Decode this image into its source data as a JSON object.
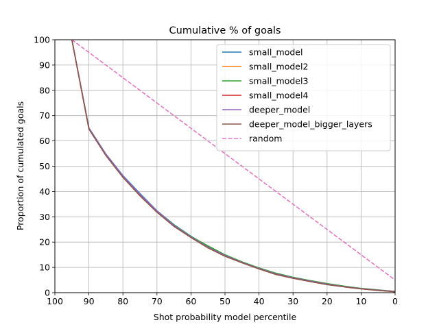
{
  "chart_data": {
    "type": "line",
    "title": "Cumulative % of goals",
    "xlabel": "Shot probability model percentile",
    "ylabel": "Proportion of cumulated goals",
    "xlim": [
      100,
      0
    ],
    "ylim": [
      0,
      100
    ],
    "x_reversed": true,
    "grid": true,
    "legend_position": "top-right",
    "x_ticks": [
      100,
      90,
      80,
      70,
      60,
      50,
      40,
      30,
      20,
      10,
      0
    ],
    "y_ticks": [
      0,
      10,
      20,
      30,
      40,
      50,
      60,
      70,
      80,
      90,
      100
    ],
    "x_tick_labels": [
      "100",
      "90",
      "80",
      "70",
      "60",
      "50",
      "40",
      "30",
      "20",
      "10",
      "0"
    ],
    "y_tick_labels": [
      "0",
      "10",
      "20",
      "30",
      "40",
      "50",
      "60",
      "70",
      "80",
      "90",
      "100"
    ],
    "x": [
      95,
      90,
      85,
      80,
      75,
      70,
      65,
      60,
      55,
      50,
      45,
      40,
      35,
      30,
      25,
      20,
      15,
      10,
      5,
      0
    ],
    "series": [
      {
        "name": "small_model",
        "color": "#1f77b4",
        "dash": "solid",
        "values": [
          100,
          65.2,
          54.8,
          46.3,
          39.2,
          32.4,
          26.9,
          22.3,
          18.2,
          14.8,
          12.1,
          9.7,
          7.5,
          5.9,
          4.6,
          3.4,
          2.5,
          1.6,
          1.0,
          0.5
        ]
      },
      {
        "name": "small_model2",
        "color": "#ff7f0e",
        "dash": "solid",
        "values": [
          100,
          64.9,
          54.5,
          45.9,
          38.6,
          32.0,
          26.5,
          22.1,
          17.9,
          14.6,
          12.0,
          9.5,
          7.3,
          5.8,
          4.5,
          3.3,
          2.4,
          1.6,
          1.0,
          0.4
        ]
      },
      {
        "name": "small_model3",
        "color": "#2ca02c",
        "dash": "solid",
        "values": [
          100,
          65.0,
          54.6,
          46.0,
          38.8,
          32.2,
          26.8,
          22.2,
          18.5,
          15.0,
          12.2,
          9.8,
          7.7,
          6.1,
          4.8,
          3.6,
          2.6,
          1.7,
          1.1,
          0.5
        ]
      },
      {
        "name": "small_model4",
        "color": "#d62728",
        "dash": "solid",
        "values": [
          100,
          64.8,
          54.3,
          45.7,
          38.4,
          31.9,
          26.3,
          21.9,
          17.8,
          14.5,
          11.9,
          9.4,
          7.2,
          5.7,
          4.4,
          3.2,
          2.3,
          1.5,
          0.9,
          0.4
        ]
      },
      {
        "name": "deeper_model",
        "color": "#9467bd",
        "dash": "solid",
        "values": [
          100,
          65.1,
          54.7,
          46.1,
          38.9,
          32.3,
          26.6,
          22.0,
          18.0,
          14.7,
          12.0,
          9.6,
          7.4,
          5.9,
          4.6,
          3.4,
          2.4,
          1.6,
          1.0,
          0.5
        ]
      },
      {
        "name": "deeper_model_bigger_layers",
        "color": "#8c564b",
        "dash": "solid",
        "values": [
          100,
          64.7,
          54.2,
          45.6,
          38.3,
          31.8,
          26.2,
          21.8,
          17.7,
          14.4,
          11.8,
          9.4,
          7.2,
          5.7,
          4.4,
          3.2,
          2.3,
          1.5,
          0.9,
          0.4
        ]
      },
      {
        "name": "random",
        "color": "#e377c2",
        "dash": "dashed",
        "values": [
          100,
          95,
          90,
          85,
          80,
          75,
          70,
          65,
          60,
          55,
          50,
          45,
          40,
          35,
          30,
          25,
          20,
          15,
          10,
          5
        ]
      }
    ]
  }
}
